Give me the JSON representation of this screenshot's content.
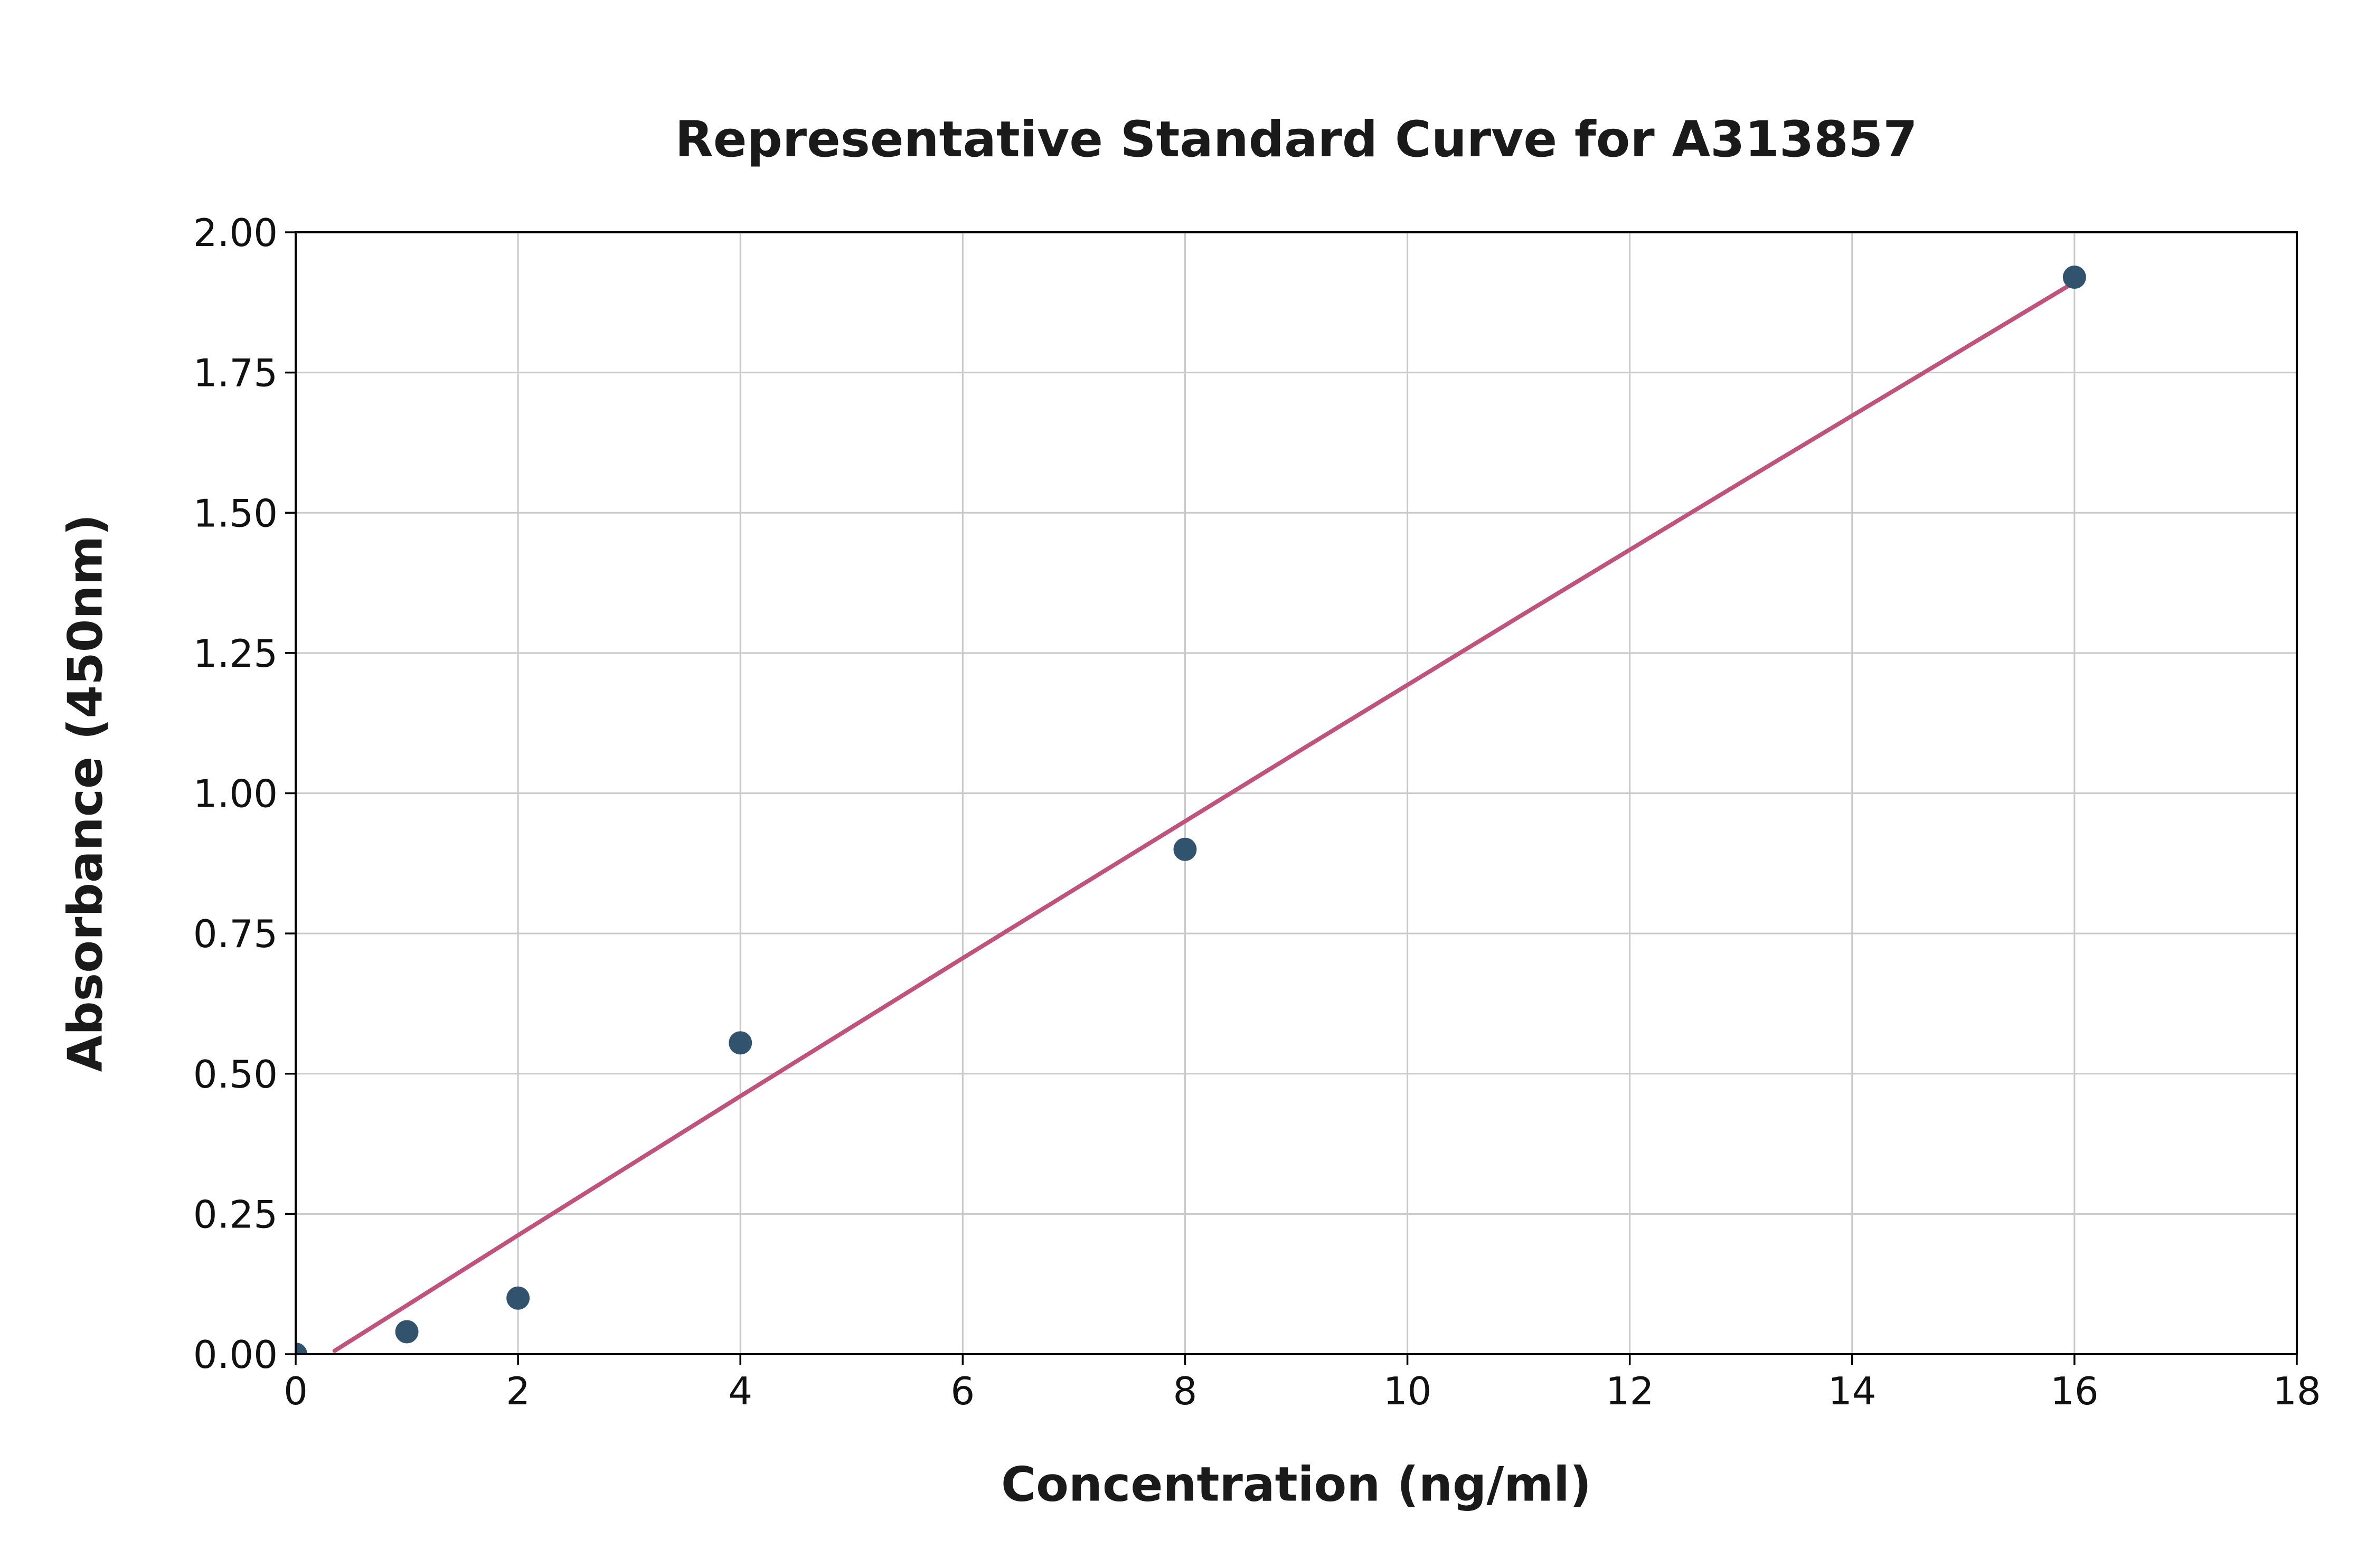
{
  "chart_data": {
    "type": "scatter",
    "title": "Representative Standard Curve for A313857",
    "xlabel": "Concentration (ng/ml)",
    "ylabel": "Absorbance (450nm)",
    "xlim": [
      0,
      18
    ],
    "ylim": [
      0,
      2
    ],
    "grid": true,
    "legend": "none",
    "x_ticks": [
      0,
      2,
      4,
      6,
      8,
      10,
      12,
      14,
      16,
      18
    ],
    "x_tick_labels": [
      "0",
      "2",
      "4",
      "6",
      "8",
      "10",
      "12",
      "14",
      "16",
      "18"
    ],
    "y_ticks": [
      0,
      0.25,
      0.5,
      0.75,
      1.0,
      1.25,
      1.5,
      1.75,
      2.0
    ],
    "y_tick_labels": [
      "0.00",
      "0.25",
      "0.50",
      "0.75",
      "1.00",
      "1.25",
      "1.50",
      "1.75",
      "2.00"
    ],
    "points": {
      "name": "standard-points",
      "x": [
        0,
        1,
        2,
        4,
        8,
        16
      ],
      "y": [
        0.0,
        0.04,
        0.1,
        0.555,
        0.9,
        1.92
      ]
    },
    "fit_line": {
      "name": "fitted-curve",
      "x": [
        0.35,
        1,
        2,
        3,
        4,
        5,
        6,
        7,
        8,
        9,
        10,
        11,
        12,
        13,
        14,
        15,
        16
      ],
      "y": [
        0.006,
        0.087,
        0.212,
        0.336,
        0.46,
        0.583,
        0.706,
        0.828,
        0.95,
        1.072,
        1.193,
        1.314,
        1.434,
        1.554,
        1.673,
        1.792,
        1.911
      ]
    },
    "colors": {
      "points": "#31536e",
      "line": "#c0537b",
      "grid": "#c9c9c9",
      "frame": "#000000",
      "text": "#111111",
      "background": "#ffffff"
    }
  }
}
